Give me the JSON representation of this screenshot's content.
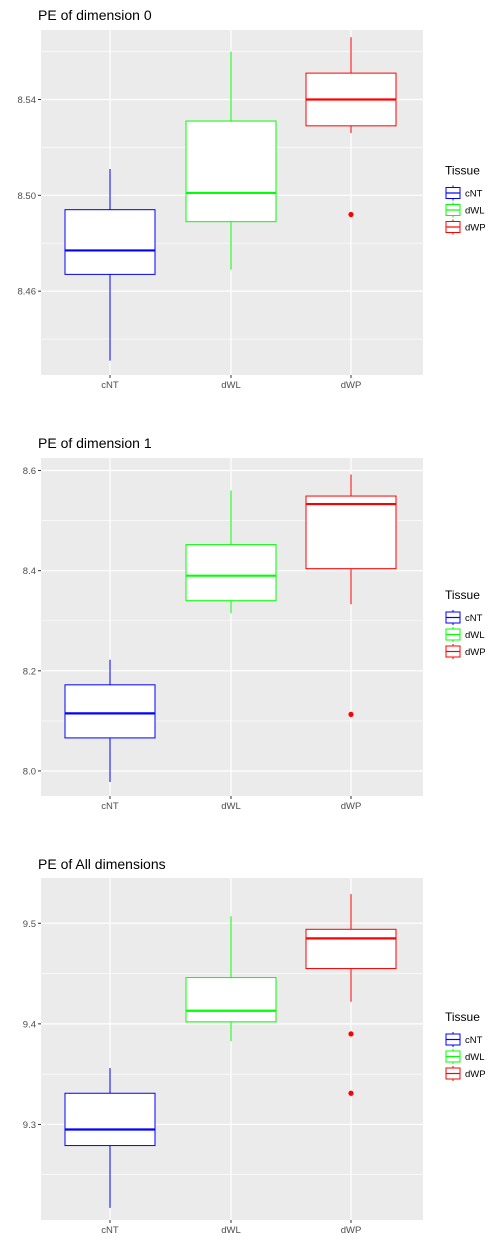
{
  "legend": {
    "title": "Tissue",
    "items": [
      {
        "label": "cNT",
        "color": "#0000FF"
      },
      {
        "label": "dWL",
        "color": "#00FF00"
      },
      {
        "label": "dWP",
        "color": "#FF0000"
      }
    ]
  },
  "chart_data": [
    {
      "type": "box",
      "title": "PE of dimension 0",
      "categories": [
        "cNT",
        "dWL",
        "dWP"
      ],
      "colors": [
        "#0000FF",
        "#00FF00",
        "#FF0000"
      ],
      "ylim": [
        8.425,
        8.569
      ],
      "yticks": [
        8.46,
        8.5,
        8.54
      ],
      "ytick_labels": [
        "8.46",
        "8.50",
        "8.54"
      ],
      "boxes": [
        {
          "min": 8.431,
          "q1": 8.467,
          "median": 8.477,
          "q3": 8.494,
          "max": 8.511,
          "outliers": []
        },
        {
          "min": 8.469,
          "q1": 8.489,
          "median": 8.501,
          "q3": 8.531,
          "max": 8.56,
          "outliers": []
        },
        {
          "min": 8.526,
          "q1": 8.529,
          "median": 8.54,
          "q3": 8.551,
          "max": 8.566,
          "outliers": [
            8.492
          ]
        }
      ]
    },
    {
      "type": "box",
      "title": "PE of dimension 1",
      "categories": [
        "cNT",
        "dWL",
        "dWP"
      ],
      "colors": [
        "#0000FF",
        "#00FF00",
        "#FF0000"
      ],
      "ylim": [
        7.95,
        8.625
      ],
      "yticks": [
        8.0,
        8.2,
        8.4,
        8.6
      ],
      "ytick_labels": [
        "8.0",
        "8.2",
        "8.4",
        "8.6"
      ],
      "boxes": [
        {
          "min": 7.978,
          "q1": 8.066,
          "median": 8.115,
          "q3": 8.172,
          "max": 8.222,
          "outliers": []
        },
        {
          "min": 8.315,
          "q1": 8.34,
          "median": 8.39,
          "q3": 8.452,
          "max": 8.56,
          "outliers": []
        },
        {
          "min": 8.333,
          "q1": 8.404,
          "median": 8.533,
          "q3": 8.549,
          "max": 8.592,
          "outliers": [
            8.113
          ]
        }
      ]
    },
    {
      "type": "box",
      "title": "PE of All dimensions",
      "categories": [
        "cNT",
        "dWL",
        "dWP"
      ],
      "colors": [
        "#0000FF",
        "#00FF00",
        "#FF0000"
      ],
      "ylim": [
        9.205,
        9.545
      ],
      "yticks": [
        9.3,
        9.4,
        9.5
      ],
      "ytick_labels": [
        "9.3",
        "9.4",
        "9.5"
      ],
      "boxes": [
        {
          "min": 9.217,
          "q1": 9.279,
          "median": 9.295,
          "q3": 9.331,
          "max": 9.356,
          "outliers": []
        },
        {
          "min": 9.383,
          "q1": 9.402,
          "median": 9.413,
          "q3": 9.446,
          "max": 9.507,
          "outliers": []
        },
        {
          "min": 9.422,
          "q1": 9.455,
          "median": 9.485,
          "q3": 9.494,
          "max": 9.529,
          "outliers": [
            9.39,
            9.331
          ]
        }
      ]
    }
  ]
}
